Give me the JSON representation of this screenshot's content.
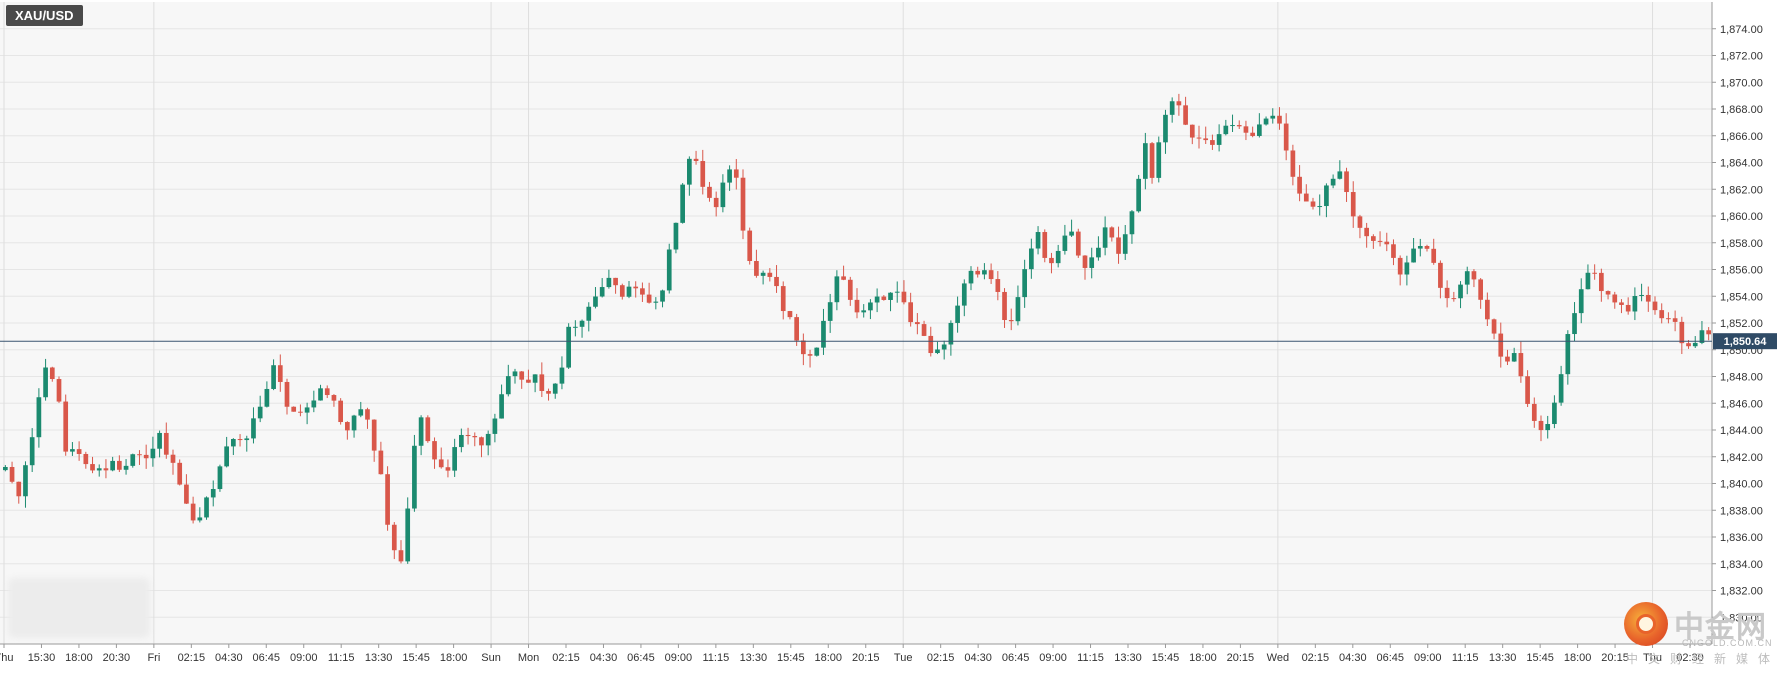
{
  "symbol": "XAU/USD",
  "colors": {
    "up": "#1b8a6f",
    "down": "#d9574a",
    "grid": "#e6e6e6",
    "background": "#f7f7f7",
    "axis_text": "#333333",
    "current_price_bg": "#2f4b66",
    "current_price_line": "#3a5570"
  },
  "watermark": {
    "cn": "中金网",
    "en": "CNGOLD.COM.CN",
    "tagline": "中文财经新媒体"
  },
  "chart_data": {
    "type": "candlestick",
    "symbol": "XAU/USD",
    "ylim": [
      1828,
      1876
    ],
    "y_ticks": [
      1830,
      1832,
      1834,
      1836,
      1838,
      1840,
      1842,
      1844,
      1846,
      1848,
      1850,
      1852,
      1854,
      1856,
      1858,
      1860,
      1862,
      1864,
      1866,
      1868,
      1870,
      1872,
      1874
    ],
    "y_tick_labels": [
      "1,830.00",
      "1,832.00",
      "1,834.00",
      "1,836.00",
      "1,838.00",
      "1,840.00",
      "1,842.00",
      "1,844.00",
      "1,846.00",
      "1,848.00",
      "1,850.00",
      "1,852.00",
      "1,854.00",
      "1,856.00",
      "1,858.00",
      "1,860.00",
      "1,862.00",
      "1,864.00",
      "1,866.00",
      "1,868.00",
      "1,870.00",
      "1,872.00",
      "1,874.00"
    ],
    "x_labels": [
      "Thu",
      "15:30",
      "18:00",
      "20:30",
      "Fri",
      "02:15",
      "04:30",
      "06:45",
      "09:00",
      "11:15",
      "13:30",
      "15:45",
      "18:00",
      "Sun",
      "Mon",
      "02:15",
      "04:30",
      "06:45",
      "09:00",
      "11:15",
      "13:30",
      "15:45",
      "18:00",
      "20:15",
      "Tue",
      "02:15",
      "04:30",
      "06:45",
      "09:00",
      "11:15",
      "13:30",
      "15:45",
      "18:00",
      "20:15",
      "Wed",
      "02:15",
      "04:30",
      "06:45",
      "09:00",
      "11:15",
      "13:30",
      "15:45",
      "18:00",
      "20:15",
      "Thu",
      "02:30"
    ],
    "current_price": 1850.64,
    "current_price_label": "1,850.64",
    "price_path": [
      [
        0,
        1841
      ],
      [
        0.8,
        1839
      ],
      [
        1.5,
        1843
      ],
      [
        2,
        1846
      ],
      [
        2.6,
        1849
      ],
      [
        3.2,
        1847
      ],
      [
        3.6,
        1842
      ],
      [
        4.2,
        1843
      ],
      [
        4.8,
        1842
      ],
      [
        5.3,
        1841
      ],
      [
        6,
        1841
      ],
      [
        6.5,
        1842
      ],
      [
        7,
        1841
      ],
      [
        7.6,
        1842
      ],
      [
        8.2,
        1842
      ],
      [
        8.8,
        1842
      ],
      [
        9.3,
        1844
      ],
      [
        10,
        1842
      ],
      [
        10.6,
        1840
      ],
      [
        11.2,
        1838
      ],
      [
        11.8,
        1837
      ],
      [
        12.4,
        1839
      ],
      [
        13,
        1841
      ],
      [
        13.6,
        1843
      ],
      [
        14.2,
        1843
      ],
      [
        14.7,
        1843
      ],
      [
        15.3,
        1846
      ],
      [
        15.8,
        1846
      ],
      [
        16.3,
        1849
      ],
      [
        16.9,
        1847
      ],
      [
        17.4,
        1845
      ],
      [
        18,
        1845
      ],
      [
        18.6,
        1846
      ],
      [
        19.2,
        1847
      ],
      [
        19.8,
        1847
      ],
      [
        20.3,
        1845
      ],
      [
        20.8,
        1844
      ],
      [
        21.4,
        1845
      ],
      [
        21.9,
        1846
      ],
      [
        22.4,
        1843
      ],
      [
        23,
        1840
      ],
      [
        23.5,
        1836
      ],
      [
        24.1,
        1834
      ],
      [
        24.6,
        1838
      ],
      [
        25.2,
        1846
      ],
      [
        25.8,
        1843
      ],
      [
        26.4,
        1841
      ],
      [
        27,
        1841
      ],
      [
        27.6,
        1843
      ],
      [
        28.1,
        1844
      ],
      [
        28.7,
        1843
      ],
      [
        29.3,
        1843
      ],
      [
        29.9,
        1845
      ],
      [
        30.5,
        1847
      ],
      [
        31,
        1849
      ],
      [
        31.3,
        1848
      ],
      [
        31.8,
        1847
      ],
      [
        32.3,
        1848
      ],
      [
        32.9,
        1847
      ],
      [
        33.4,
        1847
      ],
      [
        34,
        1849
      ],
      [
        34.5,
        1852
      ],
      [
        35,
        1852
      ],
      [
        35.5,
        1853
      ],
      [
        36,
        1854
      ],
      [
        36.6,
        1855
      ],
      [
        37.2,
        1855
      ],
      [
        37.8,
        1854
      ],
      [
        38.3,
        1855
      ],
      [
        38.9,
        1854
      ],
      [
        39.4,
        1853
      ],
      [
        40,
        1854
      ],
      [
        40.5,
        1857
      ],
      [
        41,
        1860
      ],
      [
        41.5,
        1863
      ],
      [
        42,
        1865
      ],
      [
        42.5,
        1862
      ],
      [
        43,
        1861
      ],
      [
        43.5,
        1861
      ],
      [
        44,
        1863
      ],
      [
        44.5,
        1864
      ],
      [
        45,
        1859
      ],
      [
        45.5,
        1856
      ],
      [
        46,
        1855
      ],
      [
        46.5,
        1856
      ],
      [
        47,
        1855
      ],
      [
        47.5,
        1853
      ],
      [
        48,
        1852
      ],
      [
        48.5,
        1850
      ],
      [
        49,
        1849
      ],
      [
        49.5,
        1850
      ],
      [
        50,
        1852
      ],
      [
        50.5,
        1854
      ],
      [
        51,
        1856
      ],
      [
        51.5,
        1854
      ],
      [
        52,
        1853
      ],
      [
        52.5,
        1853
      ],
      [
        53,
        1854
      ],
      [
        53.5,
        1854
      ],
      [
        54,
        1854
      ],
      [
        54.5,
        1854
      ],
      [
        55,
        1853
      ],
      [
        55.5,
        1852
      ],
      [
        56,
        1851
      ],
      [
        56.5,
        1850
      ],
      [
        57,
        1850
      ],
      [
        57.5,
        1851
      ],
      [
        58,
        1853
      ],
      [
        58.5,
        1855
      ],
      [
        59,
        1856
      ],
      [
        59.5,
        1856
      ],
      [
        60,
        1856
      ],
      [
        60.5,
        1855
      ],
      [
        61,
        1852
      ],
      [
        61.5,
        1852
      ],
      [
        62,
        1855
      ],
      [
        62.5,
        1857
      ],
      [
        63,
        1859
      ],
      [
        63.5,
        1857
      ],
      [
        64,
        1856
      ],
      [
        64.5,
        1858
      ],
      [
        65,
        1859
      ],
      [
        65.5,
        1857
      ],
      [
        66,
        1856
      ],
      [
        66.5,
        1857
      ],
      [
        67,
        1859
      ],
      [
        67.5,
        1859
      ],
      [
        68,
        1857
      ],
      [
        68.5,
        1859
      ],
      [
        69,
        1861
      ],
      [
        69.5,
        1866
      ],
      [
        70,
        1863
      ],
      [
        70.5,
        1866
      ],
      [
        71,
        1868
      ],
      [
        71.5,
        1869
      ],
      [
        72,
        1867
      ],
      [
        72.5,
        1866
      ],
      [
        73,
        1866
      ],
      [
        73.5,
        1865
      ],
      [
        74,
        1866
      ],
      [
        74.5,
        1867
      ],
      [
        75,
        1867
      ],
      [
        75.5,
        1866
      ],
      [
        76,
        1866
      ],
      [
        76.5,
        1867
      ],
      [
        77,
        1867
      ],
      [
        77.5,
        1868
      ],
      [
        78,
        1866
      ],
      [
        78.5,
        1863
      ],
      [
        79,
        1862
      ],
      [
        79.5,
        1861
      ],
      [
        80,
        1860
      ],
      [
        80.5,
        1862
      ],
      [
        81,
        1863
      ],
      [
        81.5,
        1863
      ],
      [
        82,
        1861
      ],
      [
        82.5,
        1859
      ],
      [
        83,
        1859
      ],
      [
        83.5,
        1858
      ],
      [
        84,
        1858
      ],
      [
        84.5,
        1858
      ],
      [
        85,
        1856
      ],
      [
        85.5,
        1856
      ],
      [
        86,
        1858
      ],
      [
        86.5,
        1858
      ],
      [
        87,
        1857
      ],
      [
        87.5,
        1855
      ],
      [
        88,
        1854
      ],
      [
        88.5,
        1854
      ],
      [
        89,
        1855
      ],
      [
        89.5,
        1856
      ],
      [
        90,
        1854
      ],
      [
        90.5,
        1852
      ],
      [
        91,
        1851
      ],
      [
        91.5,
        1849
      ],
      [
        92,
        1850
      ],
      [
        92.5,
        1848
      ],
      [
        93,
        1846
      ],
      [
        93.5,
        1844
      ],
      [
        94,
        1844
      ],
      [
        94.5,
        1846
      ],
      [
        95,
        1848
      ],
      [
        95.5,
        1852
      ],
      [
        96,
        1853
      ],
      [
        96.5,
        1856
      ],
      [
        97,
        1856
      ],
      [
        97.5,
        1854
      ],
      [
        98,
        1854
      ],
      [
        98.5,
        1853
      ],
      [
        99,
        1853
      ],
      [
        99.5,
        1854
      ],
      [
        100,
        1854
      ],
      [
        100.5,
        1853
      ],
      [
        101,
        1853
      ],
      [
        101.5,
        1852
      ],
      [
        102,
        1852
      ],
      [
        102.5,
        1850
      ],
      [
        103,
        1850
      ],
      [
        103.5,
        1852
      ],
      [
        104,
        1851
      ]
    ]
  }
}
